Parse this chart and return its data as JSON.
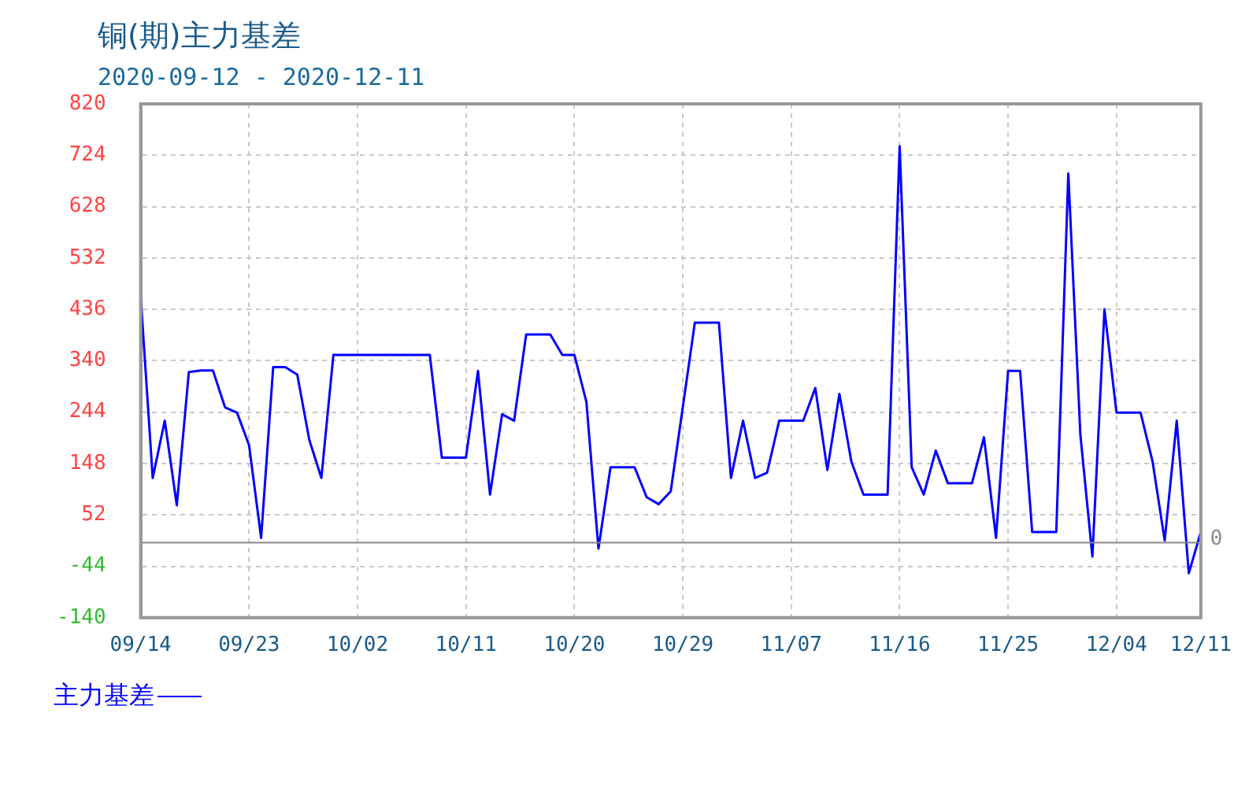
{
  "chart_data": {
    "type": "line",
    "title": "铜(期)主力基差",
    "subtitle": "2020-09-12 - 2020-12-11",
    "x": [
      "2020-09-14",
      "2020-09-15",
      "2020-09-16",
      "2020-09-17",
      "2020-09-18",
      "2020-09-19",
      "2020-09-20",
      "2020-09-21",
      "2020-09-22",
      "2020-09-23",
      "2020-09-24",
      "2020-09-25",
      "2020-09-26",
      "2020-09-27",
      "2020-09-28",
      "2020-09-29",
      "2020-09-30",
      "2020-10-01",
      "2020-10-02",
      "2020-10-03",
      "2020-10-04",
      "2020-10-05",
      "2020-10-06",
      "2020-10-07",
      "2020-10-08",
      "2020-10-09",
      "2020-10-10",
      "2020-10-11",
      "2020-10-12",
      "2020-10-13",
      "2020-10-14",
      "2020-10-15",
      "2020-10-16",
      "2020-10-17",
      "2020-10-18",
      "2020-10-19",
      "2020-10-20",
      "2020-10-21",
      "2020-10-22",
      "2020-10-23",
      "2020-10-24",
      "2020-10-25",
      "2020-10-26",
      "2020-10-27",
      "2020-10-28",
      "2020-10-29",
      "2020-10-30",
      "2020-10-31",
      "2020-11-01",
      "2020-11-02",
      "2020-11-03",
      "2020-11-04",
      "2020-11-05",
      "2020-11-06",
      "2020-11-07",
      "2020-11-08",
      "2020-11-09",
      "2020-11-10",
      "2020-11-11",
      "2020-11-12",
      "2020-11-13",
      "2020-11-14",
      "2020-11-15",
      "2020-11-16",
      "2020-11-17",
      "2020-11-18",
      "2020-11-19",
      "2020-11-20",
      "2020-11-21",
      "2020-11-22",
      "2020-11-23",
      "2020-11-24",
      "2020-11-25",
      "2020-11-26",
      "2020-11-27",
      "2020-11-28",
      "2020-11-29",
      "2020-11-30",
      "2020-12-01",
      "2020-12-02",
      "2020-12-03",
      "2020-12-04",
      "2020-12-05",
      "2020-12-06",
      "2020-12-07",
      "2020-12-08",
      "2020-12-09",
      "2020-12-10",
      "2020-12-11"
    ],
    "series": [
      {
        "name": "主力基差",
        "color": "#0000ff",
        "values": [
          461,
          121,
          228,
          70,
          319,
          322,
          322,
          253,
          243,
          182,
          9,
          328,
          328,
          314,
          192,
          121,
          351,
          351,
          351,
          351,
          351,
          351,
          351,
          351,
          351,
          159,
          159,
          159,
          321,
          90,
          240,
          228,
          389,
          389,
          389,
          351,
          351,
          263,
          -11,
          141,
          141,
          141,
          85,
          72,
          96,
          253,
          411,
          411,
          411,
          121,
          228,
          121,
          131,
          228,
          228,
          228,
          289,
          136,
          278,
          151,
          90,
          90,
          90,
          741,
          141,
          90,
          172,
          111,
          111,
          111,
          197,
          9,
          321,
          321,
          20,
          20,
          20,
          690,
          202,
          -26,
          436,
          243,
          243,
          243,
          151,
          4,
          228,
          -57,
          20
        ]
      }
    ],
    "xlim": [
      "2020-09-14",
      "2020-12-11"
    ],
    "xticks": [
      {
        "value": "2020-09-14",
        "label": "09/14"
      },
      {
        "value": "2020-09-23",
        "label": "09/23"
      },
      {
        "value": "2020-10-02",
        "label": "10/02"
      },
      {
        "value": "2020-10-11",
        "label": "10/11"
      },
      {
        "value": "2020-10-20",
        "label": "10/20"
      },
      {
        "value": "2020-10-29",
        "label": "10/29"
      },
      {
        "value": "2020-11-07",
        "label": "11/07"
      },
      {
        "value": "2020-11-16",
        "label": "11/16"
      },
      {
        "value": "2020-11-25",
        "label": "11/25"
      },
      {
        "value": "2020-12-04",
        "label": "12/04"
      },
      {
        "value": "2020-12-11",
        "label": "12/11"
      }
    ],
    "ylim": [
      -140,
      820
    ],
    "yticks": [
      -140,
      -44,
      52,
      148,
      244,
      340,
      436,
      532,
      628,
      724,
      820
    ],
    "ref_lines": [
      {
        "axis": "y",
        "value": 0,
        "label": "0",
        "color": "#888888"
      }
    ],
    "grid": true,
    "legend": "bottom left",
    "marker": "none",
    "line_style": "solid"
  }
}
